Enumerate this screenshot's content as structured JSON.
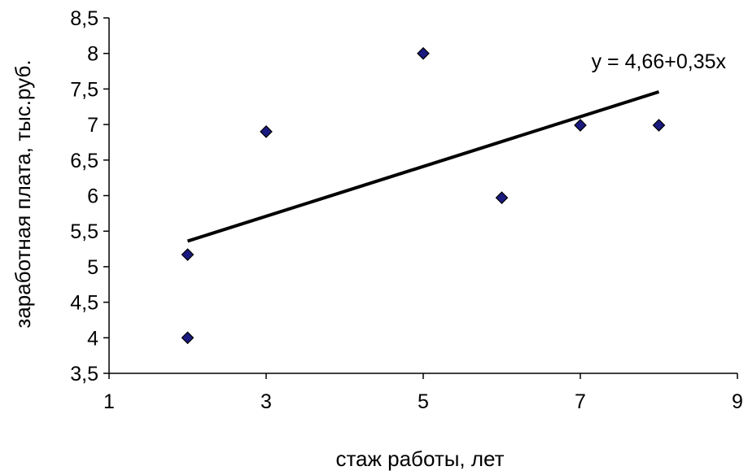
{
  "chart_data": {
    "type": "scatter",
    "xlabel": "стаж работы, лет",
    "ylabel": "заработная плата, тыс.руб.",
    "xlim": [
      1,
      9
    ],
    "ylim": [
      3.5,
      8.5
    ],
    "x_ticks": [
      "1",
      "3",
      "5",
      "7",
      "9"
    ],
    "y_ticks": [
      "3,5",
      "4",
      "4,5",
      "5",
      "5,5",
      "6",
      "6,5",
      "7",
      "7,5",
      "8",
      "8,5"
    ],
    "points": [
      {
        "x": 2,
        "y": 4.0
      },
      {
        "x": 2,
        "y": 5.17
      },
      {
        "x": 3,
        "y": 6.9
      },
      {
        "x": 5,
        "y": 8.0
      },
      {
        "x": 6,
        "y": 5.97
      },
      {
        "x": 7,
        "y": 6.99
      },
      {
        "x": 8,
        "y": 6.99
      }
    ],
    "trendline": {
      "intercept": 4.66,
      "slope": 0.35,
      "x_range": [
        2,
        8
      ],
      "equation_label": "y = 4,66+0,35x"
    },
    "marker_color": "#1a1a80",
    "grid": false
  }
}
